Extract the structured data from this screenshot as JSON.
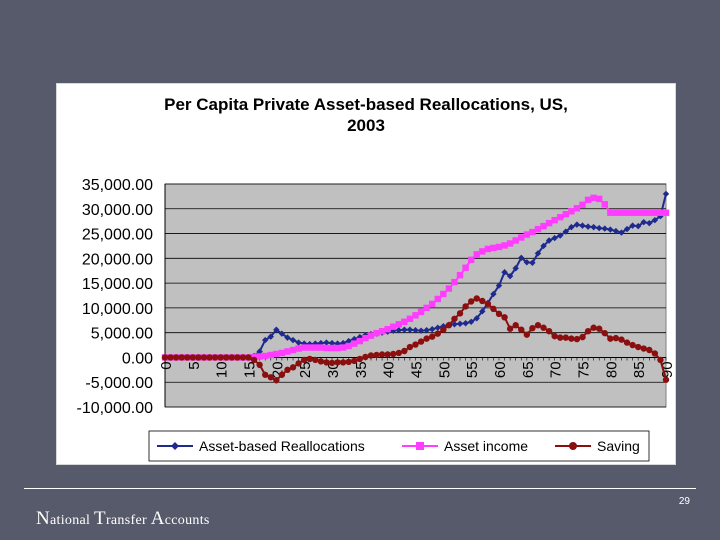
{
  "slide": {
    "page_number": "29"
  },
  "footer": {
    "logo_words": [
      {
        "cap": "N",
        "rest": "ational"
      },
      {
        "cap": "T",
        "rest": "ransfer"
      },
      {
        "cap": "A",
        "rest": "ccounts"
      }
    ]
  },
  "colors": {
    "background": "#575a6b",
    "plot_area": "#c0c0c0",
    "asset_based": "#1f2a8f",
    "asset_income": "#ff3cff",
    "saving": "#8b0f0f"
  },
  "chart_data": {
    "type": "line",
    "title_lines": [
      "Per Capita Private Asset-based Reallocations, US,",
      "2003"
    ],
    "xlabel": "",
    "ylabel": "",
    "ylim": [
      -10000,
      35000
    ],
    "yticks": [
      -10000,
      -5000,
      0,
      5000,
      10000,
      15000,
      20000,
      25000,
      30000,
      35000
    ],
    "ytick_labels": [
      "-10,000.00",
      "-5,000.00",
      "0.00",
      "5,000.00",
      "10,000.00",
      "15,000.00",
      "20,000.00",
      "25,000.00",
      "30,000.00",
      "35,000.00"
    ],
    "xlim": [
      0,
      90
    ],
    "xtick_labels": [
      "0",
      "5",
      "10",
      "15",
      "20",
      "25",
      "30",
      "35",
      "40",
      "45",
      "50",
      "55",
      "60",
      "65",
      "70",
      "75",
      "80",
      "85",
      "90"
    ],
    "grid": true,
    "legend_position": "bottom",
    "series": [
      {
        "name": "Asset-based Reallocations",
        "marker": "diamond",
        "values": [
          0,
          0,
          0,
          0,
          0,
          0,
          0,
          0,
          0,
          0,
          0,
          0,
          0,
          0,
          0,
          0,
          300,
          1200,
          3500,
          4200,
          5600,
          4800,
          4000,
          3500,
          3000,
          2800,
          2700,
          2800,
          2900,
          3000,
          2900,
          2800,
          2900,
          3300,
          3700,
          4100,
          4500,
          4700,
          4800,
          5000,
          5200,
          5400,
          5500,
          5600,
          5600,
          5500,
          5400,
          5500,
          5700,
          6000,
          6300,
          6600,
          6700,
          6800,
          6900,
          7200,
          7900,
          9300,
          11000,
          12800,
          14500,
          17200,
          16400,
          18000,
          20100,
          19200,
          19100,
          21000,
          22500,
          23600,
          24100,
          24600,
          25400,
          26300,
          26800,
          26600,
          26400,
          26300,
          26100,
          26000,
          25800,
          25500,
          25200,
          25900,
          26600,
          26500,
          27300,
          27100,
          27700,
          28500,
          33000
        ]
      },
      {
        "name": "Asset income",
        "marker": "square",
        "values": [
          0,
          0,
          0,
          0,
          0,
          0,
          0,
          0,
          0,
          0,
          0,
          0,
          0,
          0,
          0,
          0,
          100,
          200,
          300,
          500,
          700,
          900,
          1200,
          1500,
          1800,
          2000,
          2000,
          2000,
          2000,
          1900,
          1900,
          1900,
          2000,
          2300,
          2800,
          3300,
          3900,
          4400,
          4900,
          5300,
          5700,
          6200,
          6700,
          7200,
          7800,
          8500,
          9200,
          10000,
          10800,
          11800,
          12800,
          13900,
          15200,
          16600,
          18100,
          19700,
          20800,
          21400,
          21900,
          22100,
          22300,
          22600,
          23000,
          23600,
          24200,
          24800,
          25300,
          25900,
          26500,
          27100,
          27700,
          28300,
          28900,
          29500,
          30100,
          30800,
          31800,
          32200,
          32000,
          30900,
          29200,
          29200,
          29200,
          29200,
          29200,
          29200,
          29200,
          29200,
          29200,
          29200,
          29200
        ]
      },
      {
        "name": "Saving",
        "marker": "circle",
        "values": [
          0,
          0,
          0,
          0,
          0,
          0,
          0,
          0,
          0,
          0,
          0,
          0,
          0,
          0,
          0,
          0,
          -500,
          -1500,
          -3500,
          -4000,
          -4600,
          -3500,
          -2500,
          -2000,
          -1200,
          -500,
          -300,
          -500,
          -800,
          -1000,
          -1100,
          -1000,
          -1000,
          -900,
          -700,
          -300,
          100,
          400,
          500,
          600,
          600,
          700,
          900,
          1300,
          2100,
          2600,
          3200,
          3800,
          4200,
          4800,
          5600,
          6500,
          7800,
          8900,
          10300,
          11300,
          11900,
          11400,
          10800,
          9800,
          8800,
          8100,
          5800,
          6500,
          5600,
          4600,
          5900,
          6500,
          6000,
          5300,
          4300,
          4000,
          4000,
          3800,
          3700,
          4100,
          5300,
          6000,
          5800,
          4900,
          3800,
          3900,
          3600,
          3000,
          2500,
          2100,
          1800,
          1500,
          800,
          -500,
          -4500
        ]
      }
    ]
  }
}
